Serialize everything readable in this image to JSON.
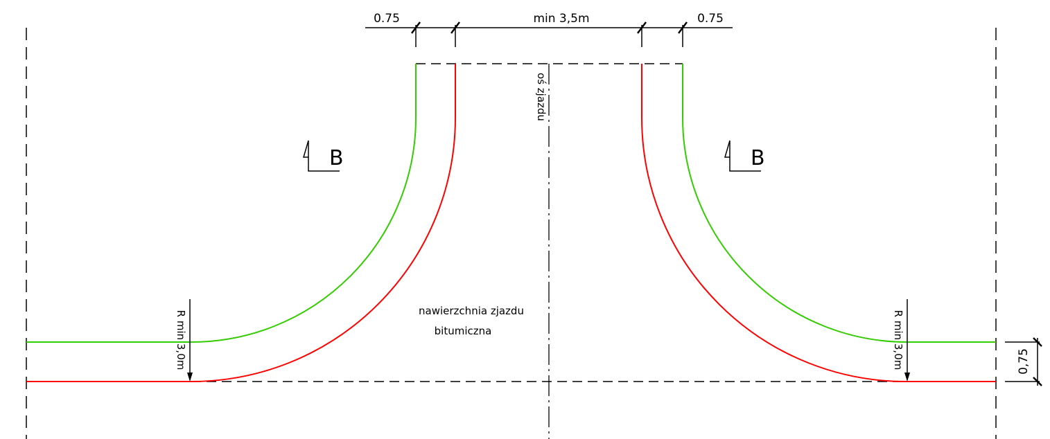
{
  "dimensions": {
    "top_left": "0.75",
    "top_center": "min 3,5m",
    "top_right": "0.75",
    "right_side": "0,75"
  },
  "labels": {
    "axis": "oś zjazdu",
    "surface_line1": "nawierzchnia zjazdu",
    "surface_line2": "bitumiczna",
    "radius_left": "R min 3,0m",
    "radius_right": "R min 3,0m",
    "section_left": "B",
    "section_right": "B"
  },
  "colors": {
    "inner_edge": "#ff0000",
    "outer_edge": "#33cc00",
    "lines": "#000000"
  }
}
